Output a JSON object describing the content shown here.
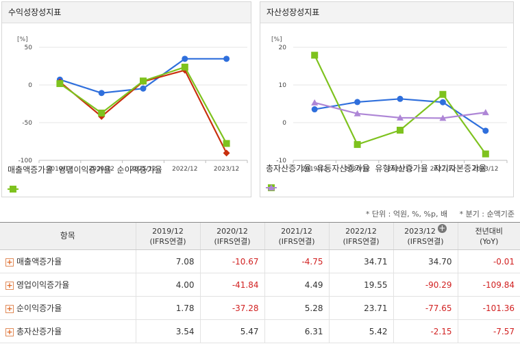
{
  "left_panel": {
    "title": "수익성장성지표"
  },
  "right_panel": {
    "title": "자산성장성지표"
  },
  "chart_data": [
    {
      "type": "line",
      "title": "수익성장성지표",
      "unit_label": "[%]",
      "categories": [
        "2019/12",
        "2020/12",
        "2021/12",
        "2022/12",
        "2023/12"
      ],
      "ylim": [
        -100,
        50
      ],
      "yticks": [
        50,
        0,
        -50,
        -100
      ],
      "legend_position": "bottom",
      "series": [
        {
          "name": "매출액증가율",
          "color": "#2f6fdc",
          "marker": "circle",
          "values": [
            7.08,
            -10.67,
            -4.75,
            34.71,
            34.7
          ]
        },
        {
          "name": "영업이익증가율",
          "color": "#c9300e",
          "marker": "diamond",
          "values": [
            4.0,
            -41.84,
            4.49,
            19.55,
            -90.29
          ]
        },
        {
          "name": "순이익증가율",
          "color": "#7ec21e",
          "marker": "square",
          "values": [
            1.78,
            -37.28,
            5.28,
            23.71,
            -77.65
          ]
        }
      ]
    },
    {
      "type": "line",
      "title": "자산성장성지표",
      "unit_label": "[%]",
      "categories": [
        "2019/12",
        "2020/12",
        "2021/12",
        "2022/12",
        "2023/12"
      ],
      "ylim": [
        -10,
        20
      ],
      "yticks": [
        20,
        10,
        0,
        -10
      ],
      "legend_position": "bottom",
      "series": [
        {
          "name": "총자산증가율",
          "color": "#2f6fdc",
          "marker": "circle",
          "values": [
            3.54,
            5.47,
            6.31,
            5.42,
            -2.15
          ]
        },
        {
          "name": "유동자산증가율",
          "color": "#c9300e",
          "marker": "diamond",
          "values": null
        },
        {
          "name": "유형자산증가율",
          "color": "#7ec21e",
          "marker": "square",
          "values": [
            17.9,
            -5.8,
            -2.0,
            7.5,
            -8.3
          ]
        },
        {
          "name": "자기자본증가율",
          "color": "#ae86d6",
          "marker": "triangle",
          "values": [
            5.3,
            2.4,
            1.3,
            1.2,
            2.7
          ]
        }
      ]
    }
  ],
  "notes": {
    "unit": "* 단위 : 억원, %, %p, 배",
    "basis": "* 분기 : 순액기준"
  },
  "table": {
    "header_item": "항목",
    "columns": [
      {
        "period": "2019/12",
        "basis": "(IFRS연결)"
      },
      {
        "period": "2020/12",
        "basis": "(IFRS연결)"
      },
      {
        "period": "2021/12",
        "basis": "(IFRS연결)"
      },
      {
        "period": "2022/12",
        "basis": "(IFRS연결)"
      },
      {
        "period": "2023/12",
        "basis": "(IFRS연결)"
      },
      {
        "period": "전년대비",
        "basis": "(YoY)"
      }
    ],
    "rows": [
      {
        "label": "매출액증가율",
        "values": [
          "7.08",
          "-10.67",
          "-4.75",
          "34.71",
          "34.70",
          "-0.01"
        ]
      },
      {
        "label": "영업이익증가율",
        "values": [
          "4.00",
          "-41.84",
          "4.49",
          "19.55",
          "-90.29",
          "-109.84"
        ]
      },
      {
        "label": "순이익증가율",
        "values": [
          "1.78",
          "-37.28",
          "5.28",
          "23.71",
          "-77.65",
          "-101.36"
        ]
      },
      {
        "label": "총자산증가율",
        "values": [
          "3.54",
          "5.47",
          "6.31",
          "5.42",
          "-2.15",
          "-7.57"
        ]
      }
    ]
  }
}
